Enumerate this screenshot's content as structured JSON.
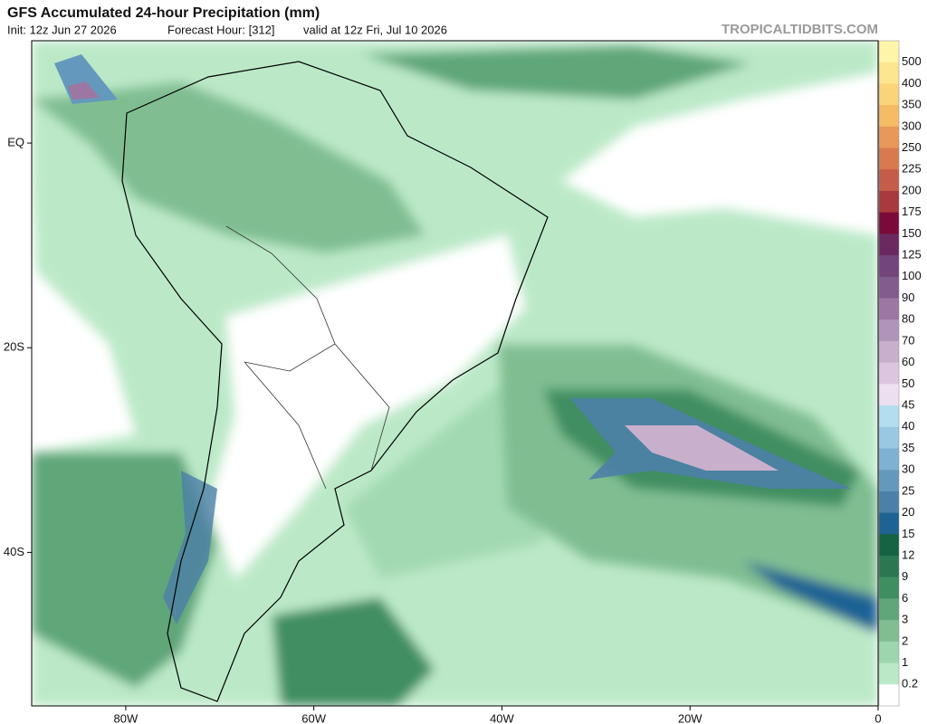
{
  "header": {
    "title": "GFS Accumulated 24-hour Precipitation (mm)",
    "init": "Init: 12z Jun 27 2026",
    "forecast_hour": "Forecast Hour: [312]",
    "valid": "valid at 12z Fri, Jul 10 2026",
    "watermark": "TROPICALTIDBITS.COM"
  },
  "map": {
    "xlim": [
      -90,
      0
    ],
    "ylim": [
      -55,
      10
    ],
    "xticks": [
      {
        "value": -80,
        "label": "80W"
      },
      {
        "value": -60,
        "label": "60W"
      },
      {
        "value": -40,
        "label": "40W"
      },
      {
        "value": -20,
        "label": "20W"
      },
      0
    ],
    "yticks": [
      {
        "value": 0,
        "label": "EQ"
      },
      {
        "value": -20,
        "label": "20S"
      },
      {
        "value": -40,
        "label": "40S"
      }
    ]
  },
  "colorbar": {
    "levels": [
      500,
      400,
      350,
      300,
      250,
      225,
      200,
      175,
      150,
      125,
      100,
      90,
      80,
      70,
      60,
      50,
      45,
      40,
      35,
      30,
      25,
      20,
      15,
      12,
      9,
      6,
      3,
      2,
      1,
      0.2
    ],
    "colors": [
      "#fff5a8",
      "#fde68f",
      "#fbd37a",
      "#f5bb65",
      "#e8985a",
      "#d9794f",
      "#c45c4a",
      "#a8393f",
      "#7a0b38",
      "#6a2a60",
      "#74447c",
      "#825c8e",
      "#9c77a3",
      "#b195b8",
      "#c8b0cc",
      "#dcc6df",
      "#ecdff0",
      "#b5ddf0",
      "#98c8e2",
      "#7fb2d2",
      "#6499bd",
      "#4c80a8",
      "#1f6294",
      "#166343",
      "#2b7752",
      "#3f8e62",
      "#5fa679",
      "#80be92",
      "#9dd5ac",
      "#bbe9c8",
      "#ffffff"
    ]
  }
}
